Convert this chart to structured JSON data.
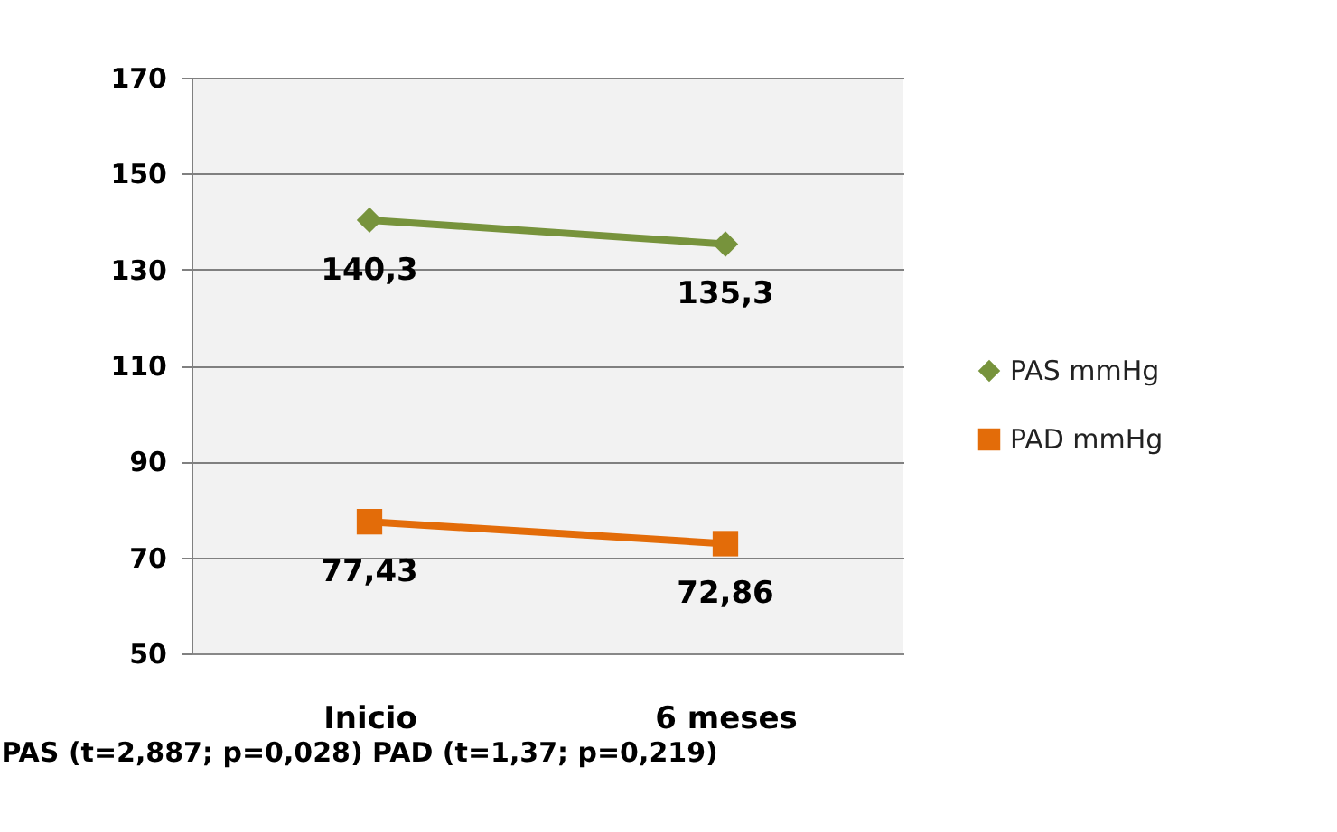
{
  "chart_data": {
    "type": "line",
    "categories": [
      "Inicio",
      "6 meses"
    ],
    "series": [
      {
        "name": "PAS mmHg",
        "color": "#77933c",
        "marker": "diamond",
        "values": [
          140.3,
          135.3
        ],
        "value_labels": [
          "140,3",
          "135,3"
        ]
      },
      {
        "name": "PAD mmHg",
        "color": "#e36c09",
        "marker": "square",
        "values": [
          77.43,
          72.86
        ],
        "value_labels": [
          "77,43",
          "72,86"
        ]
      }
    ],
    "ylim": [
      50,
      170
    ],
    "yticks": [
      50,
      70,
      90,
      110,
      130,
      150,
      170
    ],
    "grid": "y",
    "legend": "right",
    "annotations": [
      "PAS (t=2,887; p=0,028)  PAD (t=1,37; p=0,219)"
    ]
  }
}
